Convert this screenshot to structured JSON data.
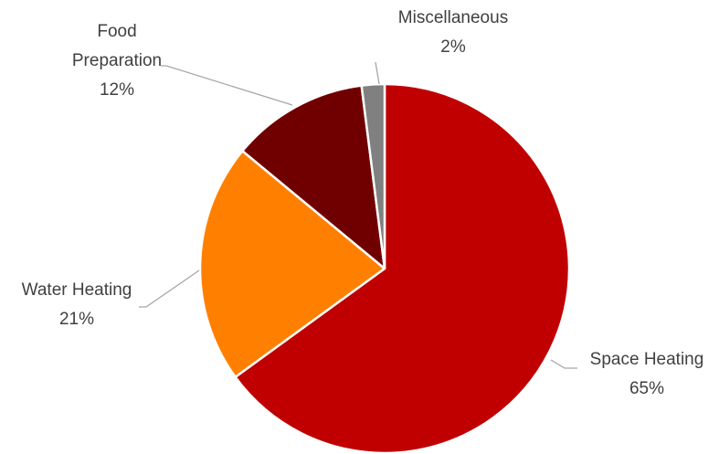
{
  "chart_data": {
    "type": "pie",
    "categories": [
      "Space Heating",
      "Water Heating",
      "Food Preparation",
      "Miscellaneous"
    ],
    "values": [
      65,
      21,
      12,
      2
    ],
    "value_labels": [
      "65%",
      "21%",
      "12%",
      "2%"
    ],
    "colors": [
      "#c00000",
      "#ff8000",
      "#700000",
      "#808080"
    ]
  }
}
